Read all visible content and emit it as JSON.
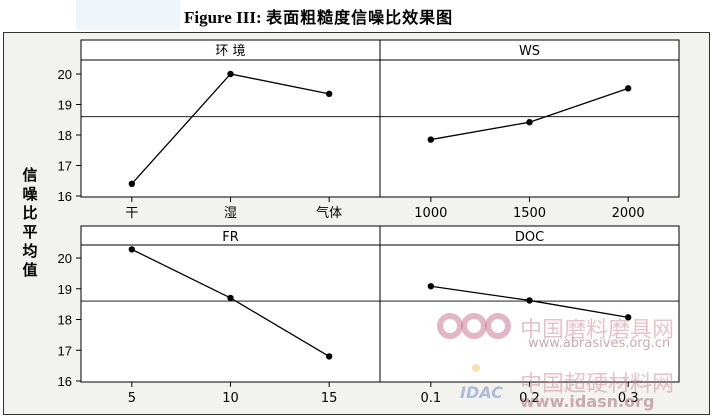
{
  "figure": {
    "label": "Figure III:",
    "caption": "表面粗糙度信噪比效果图"
  },
  "chart_data": [
    {
      "type": "line",
      "panel": "top-left",
      "title": "环 境",
      "categories": [
        "干",
        "湿",
        "气体"
      ],
      "values": [
        16.4,
        20.0,
        19.35
      ],
      "ylim": [
        16,
        20
      ],
      "yticks": [
        "16",
        "17",
        "18",
        "19",
        "20"
      ],
      "mean_line": 18.6,
      "ylabel": "信噪比平均值"
    },
    {
      "type": "line",
      "panel": "top-right",
      "title": "WS",
      "categories": [
        "1000",
        "1500",
        "2000"
      ],
      "values": [
        17.85,
        18.42,
        19.53
      ],
      "ylim": [
        16,
        20
      ],
      "mean_line": 18.6
    },
    {
      "type": "line",
      "panel": "bottom-left",
      "title": "FR",
      "categories": [
        "5",
        "10",
        "15"
      ],
      "values": [
        20.28,
        18.7,
        16.8
      ],
      "ylim": [
        16,
        20
      ],
      "yticks": [
        "16",
        "17",
        "18",
        "19",
        "20"
      ],
      "mean_line": 18.6,
      "ylabel": "信噪比平均值"
    },
    {
      "type": "line",
      "panel": "bottom-right",
      "title": "DOC",
      "categories": [
        "0.1",
        "0.2",
        "0.3"
      ],
      "values": [
        19.08,
        18.62,
        18.07
      ],
      "ylim": [
        16,
        20
      ],
      "mean_line": 18.6
    }
  ],
  "watermarks": {
    "site1_name": "中国磨料磨具网",
    "site1_url": "www.abrasives.org.cn",
    "site2_name": "中国超硬材料网",
    "site2_url": "www.idasn.org",
    "logo2_text": "IDAC"
  },
  "colors": {
    "line": "#000000",
    "panel_bg": "#ffffff",
    "frame_bg": "#f2f3ef",
    "watermark": "#c8788c"
  }
}
